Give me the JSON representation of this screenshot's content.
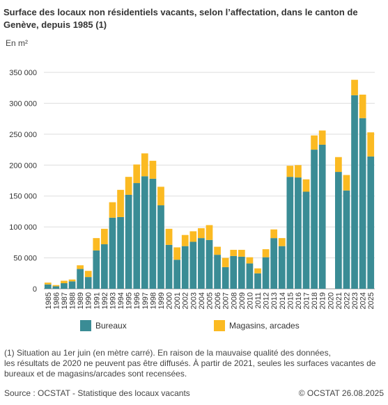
{
  "header": {
    "title": "Surface des locaux non résidentiels vacants, selon l’affectation, dans le canton de Genève, depuis 1985 (1)",
    "unit": "En m²"
  },
  "colors": {
    "bureaux": "#3a8c95",
    "magasins": "#fbba22",
    "grid": "#dddddd"
  },
  "chart_data": {
    "type": "bar",
    "stacked": true,
    "title": "Surface des locaux non résidentiels vacants, selon l’affectation, dans le canton de Genève, depuis 1985 (1)",
    "ylabel": "En m²",
    "ylim": [
      0,
      350000
    ],
    "yticks": [
      "0",
      "50 000",
      "100 000",
      "150 000",
      "200 000",
      "250 000",
      "300 000",
      "350 000"
    ],
    "categories": [
      "1985",
      "1986",
      "1987",
      "1988",
      "1989",
      "1990",
      "1991",
      "1992",
      "1993",
      "1994",
      "1995",
      "1996",
      "1997",
      "1998",
      "1999",
      "2000",
      "2001",
      "2002",
      "2003",
      "2004",
      "2005",
      "2006",
      "2007",
      "2008",
      "2009",
      "2010",
      "2011",
      "2012",
      "2013",
      "2014",
      "2015",
      "2016",
      "2017",
      "2018",
      "2019",
      "2020",
      "2021",
      "2022",
      "2023",
      "2024",
      "2025"
    ],
    "series": [
      {
        "name": "Bureaux",
        "values": [
          7000,
          4000,
          9000,
          12000,
          32000,
          19000,
          62000,
          72000,
          115000,
          116000,
          152000,
          171000,
          182000,
          178000,
          135000,
          71000,
          47000,
          69000,
          76000,
          82000,
          79000,
          55000,
          35000,
          53000,
          52000,
          41000,
          25000,
          51000,
          82000,
          69000,
          181000,
          180000,
          157000,
          225000,
          233000,
          null,
          189000,
          159000,
          313000,
          276000,
          214000
        ]
      },
      {
        "name": "Magasins, arcades",
        "values": [
          3000,
          2000,
          4000,
          3000,
          6000,
          10000,
          20000,
          25000,
          25000,
          44000,
          29000,
          30000,
          37000,
          29000,
          30000,
          26000,
          20000,
          18000,
          17000,
          16000,
          24000,
          13000,
          15000,
          10000,
          11000,
          10000,
          8000,
          13000,
          14000,
          13000,
          18000,
          20000,
          20000,
          23000,
          23000,
          null,
          24000,
          25000,
          25000,
          38000,
          39000
        ]
      }
    ],
    "grid": true,
    "legend_position": "bottom"
  },
  "legend": {
    "bureaux": "Bureaux",
    "magasins": "Magasins, arcades"
  },
  "note": {
    "line1": "(1) Situation au 1er juin (en mètre carré). En raison de la mauvaise qualité des données,",
    "line2": "les résultats de 2020 ne peuvent pas être diffusés. À partir de 2021, seules les surfaces vacantes de",
    "line3": "bureaux et de magasins/arcades sont recensées."
  },
  "footer": {
    "source": "Source : OCSTAT - Statistique des locaux vacants",
    "copyright": "© OCSTAT 26.08.2025"
  }
}
